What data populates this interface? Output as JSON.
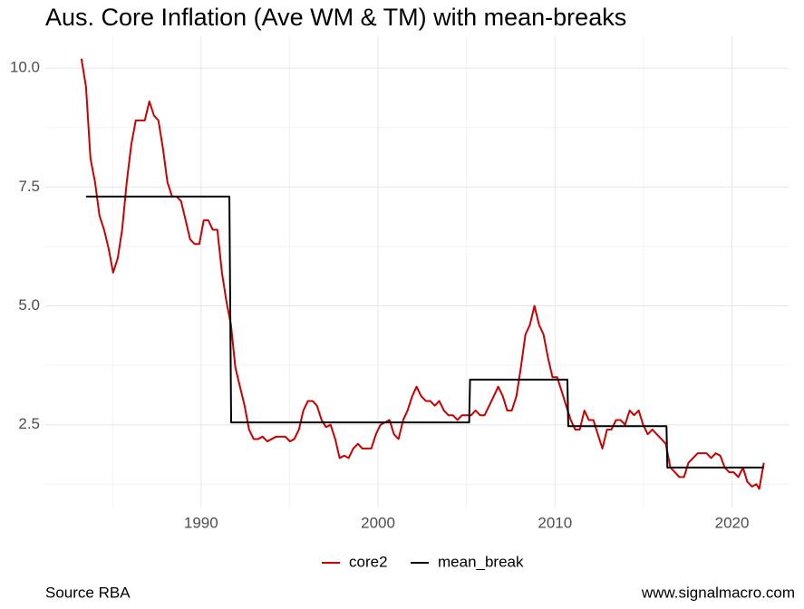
{
  "chart_data": {
    "type": "line",
    "title": "Aus. Core Inflation (Ave WM & TM) with mean-breaks",
    "caption_left": "Source RBA",
    "caption_right": "www.signalmacro.com",
    "xlim": [
      1981.2,
      2023.2
    ],
    "xticks": [
      1990,
      2000,
      2010,
      2020
    ],
    "xminor": [
      1985,
      1995,
      2005,
      2015
    ],
    "ylim": [
      0.76,
      10.67
    ],
    "yticks": [
      {
        "value": 2.5,
        "label": "2.5"
      },
      {
        "value": 5,
        "label": "5.0"
      },
      {
        "value": 7.5,
        "label": "7.5"
      },
      {
        "value": 10,
        "label": "10.0"
      }
    ],
    "yminor": [
      1.25,
      3.75,
      6.25,
      8.75
    ],
    "grid": true,
    "legend": "bottom",
    "series": [
      {
        "name": "core2",
        "color": "#cc0000",
        "x": [
          1983.24,
          1983.5,
          1983.75,
          1984.01,
          1984.26,
          1984.52,
          1984.78,
          1985.03,
          1985.29,
          1985.54,
          1985.8,
          1986.06,
          1986.31,
          1986.57,
          1986.82,
          1987.08,
          1987.34,
          1987.59,
          1987.85,
          1988.1,
          1988.36,
          1988.62,
          1988.87,
          1989.13,
          1989.38,
          1989.64,
          1989.9,
          1990.15,
          1990.41,
          1990.66,
          1990.92,
          1991.18,
          1991.43,
          1991.69,
          1991.94,
          1992.2,
          1992.46,
          1992.71,
          1992.97,
          1993.22,
          1993.48,
          1993.74,
          1993.99,
          1994.25,
          1994.5,
          1994.76,
          1995.02,
          1995.27,
          1995.53,
          1995.78,
          1996.04,
          1996.3,
          1996.55,
          1996.81,
          1997.06,
          1997.32,
          1997.58,
          1997.83,
          1998.09,
          1998.34,
          1998.6,
          1998.86,
          1999.11,
          1999.37,
          1999.62,
          1999.88,
          2000.14,
          2000.39,
          2000.65,
          2000.9,
          2001.16,
          2001.42,
          2001.67,
          2001.93,
          2002.18,
          2002.44,
          2002.7,
          2002.95,
          2003.21,
          2003.46,
          2003.72,
          2003.98,
          2004.23,
          2004.49,
          2004.74,
          2005.0,
          2005.26,
          2005.51,
          2005.77,
          2006.02,
          2006.28,
          2006.54,
          2006.79,
          2007.05,
          2007.3,
          2007.56,
          2007.82,
          2008.07,
          2008.33,
          2008.58,
          2008.84,
          2009.1,
          2009.35,
          2009.61,
          2009.86,
          2010.12,
          2010.38,
          2010.63,
          2010.89,
          2011.14,
          2011.4,
          2011.66,
          2011.91,
          2012.17,
          2012.42,
          2012.68,
          2012.94,
          2013.19,
          2013.45,
          2013.7,
          2013.96,
          2014.22,
          2014.47,
          2014.73,
          2014.98,
          2015.24,
          2015.5,
          2015.75,
          2016.01,
          2016.26,
          2016.52,
          2016.78,
          2017.03,
          2017.29,
          2017.54,
          2017.8,
          2018.06,
          2018.31,
          2018.57,
          2018.82,
          2019.08,
          2019.34,
          2019.59,
          2019.85,
          2020.1,
          2020.36,
          2020.62,
          2020.87,
          2021.13,
          2021.38,
          2021.54,
          2021.8
        ],
        "values": [
          10.2,
          9.6,
          8.1,
          7.6,
          6.9,
          6.6,
          6.2,
          5.7,
          6.0,
          6.6,
          7.6,
          8.4,
          8.9,
          8.9,
          8.9,
          9.3,
          9.0,
          8.9,
          8.3,
          7.6,
          7.3,
          7.3,
          7.2,
          6.8,
          6.4,
          6.3,
          6.3,
          6.8,
          6.8,
          6.6,
          6.6,
          5.7,
          5.1,
          4.6,
          3.7,
          3.3,
          2.9,
          2.4,
          2.2,
          2.2,
          2.25,
          2.15,
          2.2,
          2.25,
          2.25,
          2.25,
          2.15,
          2.2,
          2.4,
          2.8,
          3.0,
          3.0,
          2.9,
          2.6,
          2.45,
          2.5,
          2.2,
          1.8,
          1.85,
          1.8,
          2.0,
          2.1,
          2.0,
          2.0,
          2.0,
          2.3,
          2.5,
          2.55,
          2.6,
          2.3,
          2.2,
          2.6,
          2.8,
          3.1,
          3.3,
          3.1,
          3.0,
          3.0,
          2.9,
          3.0,
          2.8,
          2.7,
          2.7,
          2.6,
          2.7,
          2.7,
          2.7,
          2.8,
          2.7,
          2.7,
          2.9,
          3.1,
          3.3,
          3.1,
          2.8,
          2.8,
          3.1,
          3.7,
          4.4,
          4.6,
          5.0,
          4.6,
          4.4,
          3.9,
          3.5,
          3.5,
          3.2,
          2.9,
          2.6,
          2.4,
          2.4,
          2.8,
          2.6,
          2.6,
          2.3,
          2.0,
          2.4,
          2.4,
          2.6,
          2.6,
          2.5,
          2.8,
          2.7,
          2.8,
          2.5,
          2.3,
          2.4,
          2.3,
          2.2,
          2.1,
          1.6,
          1.5,
          1.4,
          1.4,
          1.7,
          1.8,
          1.9,
          1.9,
          1.9,
          1.8,
          1.9,
          1.85,
          1.6,
          1.5,
          1.5,
          1.4,
          1.6,
          1.3,
          1.2,
          1.25,
          1.15,
          1.7
        ]
      },
      {
        "name": "mean_break",
        "color": "#000000",
        "x": [
          1983.5,
          1991.6,
          1991.7,
          2005.15,
          2005.2,
          2010.7,
          2010.75,
          2016.3,
          2016.35,
          2021.8
        ],
        "values": [
          7.3,
          7.3,
          2.55,
          2.55,
          3.45,
          3.45,
          2.47,
          2.47,
          1.6,
          1.6
        ]
      }
    ]
  }
}
